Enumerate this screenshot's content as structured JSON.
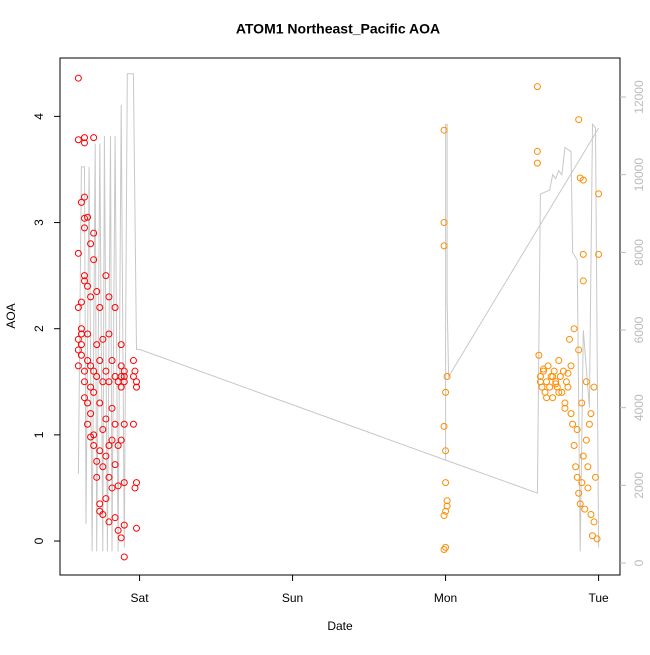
{
  "chart_data": {
    "type": "scatter",
    "title": "ATOM1 Northeast_Pacific AOA",
    "x_label": "Date",
    "y_label": "AOA",
    "xlim": [
      -0.52,
      3.14
    ],
    "xticks": [
      {
        "value": 0,
        "label": "Sat"
      },
      {
        "value": 1,
        "label": "Sun"
      },
      {
        "value": 2,
        "label": "Mon"
      },
      {
        "value": 3,
        "label": "Tue"
      }
    ],
    "ylim": [
      -0.32,
      4.55
    ],
    "yticks": [
      0,
      1,
      2,
      3,
      4
    ],
    "y2lim": [
      -309,
      13005
    ],
    "y2ticks": [
      0,
      2000,
      4000,
      6000,
      8000,
      10000,
      12000
    ],
    "series": [
      {
        "type": "scatter",
        "color": "#ff0000",
        "x": [
          -0.4,
          -0.4,
          -0.4,
          -0.4,
          -0.4,
          -0.4,
          -0.4,
          -0.38,
          -0.38,
          -0.38,
          -0.38,
          -0.38,
          -0.38,
          -0.36,
          -0.36,
          -0.36,
          -0.36,
          -0.36,
          -0.36,
          -0.36,
          -0.36,
          -0.36,
          -0.36,
          -0.34,
          -0.34,
          -0.34,
          -0.34,
          -0.34,
          -0.34,
          -0.32,
          -0.32,
          -0.32,
          -0.32,
          -0.32,
          -0.32,
          -0.3,
          -0.3,
          -0.3,
          -0.3,
          -0.3,
          -0.3,
          -0.3,
          -0.28,
          -0.28,
          -0.28,
          -0.28,
          -0.28,
          -0.26,
          -0.26,
          -0.26,
          -0.26,
          -0.26,
          -0.26,
          -0.24,
          -0.24,
          -0.24,
          -0.24,
          -0.24,
          -0.22,
          -0.22,
          -0.22,
          -0.22,
          -0.22,
          -0.2,
          -0.2,
          -0.2,
          -0.2,
          -0.2,
          -0.2,
          -0.18,
          -0.18,
          -0.18,
          -0.18,
          -0.16,
          -0.16,
          -0.16,
          -0.16,
          -0.16,
          -0.14,
          -0.14,
          -0.14,
          -0.14,
          -0.12,
          -0.12,
          -0.12,
          -0.12,
          -0.12,
          -0.12,
          -0.1,
          -0.1,
          -0.1,
          -0.1,
          -0.1,
          -0.1,
          -0.1,
          -0.04,
          -0.04,
          -0.04,
          -0.03,
          -0.03,
          -0.02,
          -0.02,
          -0.02,
          -0.02
        ],
        "values": [
          4.36,
          3.78,
          2.71,
          2.2,
          1.9,
          1.8,
          1.65,
          3.19,
          2.0,
          2.25,
          1.95,
          1.85,
          1.75,
          3.8,
          3.75,
          3.24,
          3.04,
          2.95,
          2.5,
          2.45,
          1.6,
          1.5,
          1.35,
          3.05,
          2.4,
          1.95,
          1.7,
          1.3,
          1.1,
          2.8,
          2.3,
          1.65,
          1.45,
          1.2,
          0.98,
          3.8,
          2.9,
          2.65,
          1.6,
          1.4,
          1.0,
          0.9,
          2.35,
          1.85,
          1.55,
          0.75,
          0.6,
          2.2,
          1.7,
          1.3,
          0.85,
          0.35,
          0.28,
          1.9,
          1.5,
          1.05,
          0.7,
          0.25,
          2.5,
          1.6,
          1.15,
          0.8,
          0.4,
          2.3,
          1.95,
          1.5,
          0.9,
          0.6,
          0.18,
          1.7,
          1.25,
          0.95,
          0.5,
          2.2,
          1.55,
          1.1,
          0.72,
          0.22,
          1.5,
          0.9,
          0.52,
          0.1,
          1.85,
          1.65,
          1.55,
          1.45,
          0.95,
          0.03,
          1.6,
          1.55,
          1.5,
          1.1,
          0.55,
          0.15,
          -0.15,
          1.7,
          1.55,
          1.1,
          1.6,
          0.5,
          1.5,
          1.45,
          0.12,
          0.55
        ]
      },
      {
        "type": "scatter",
        "color": "#ff8c00",
        "x": [
          1.99,
          1.99,
          1.99,
          2.01,
          2.0,
          1.99,
          2.0,
          2.0,
          2.01,
          2.01,
          2.0,
          1.99,
          2.0,
          1.99,
          2.6,
          2.6,
          2.6,
          2.61,
          2.62,
          2.63,
          2.64,
          2.65,
          2.66,
          2.67,
          2.68,
          2.69,
          2.7,
          2.71,
          2.72,
          2.73,
          2.74,
          2.75,
          2.76,
          2.77,
          2.78,
          2.79,
          2.8,
          2.81,
          2.82,
          2.83,
          2.84,
          2.85,
          2.86,
          2.87,
          2.88,
          2.89,
          2.9,
          2.91,
          2.92,
          2.93,
          2.94,
          2.95,
          2.96,
          2.97,
          2.87,
          2.88,
          2.9,
          3.0,
          3.0,
          2.9,
          2.62,
          2.66,
          2.7,
          2.74,
          2.78,
          2.82,
          2.86,
          2.89,
          2.92,
          2.95,
          2.98,
          2.99,
          2.84,
          2.87,
          2.9,
          2.93,
          2.97,
          2.64,
          2.72,
          2.8
        ],
        "values": [
          3.87,
          3.0,
          2.78,
          1.55,
          1.4,
          1.08,
          0.85,
          0.55,
          0.38,
          0.33,
          0.28,
          0.24,
          -0.06,
          -0.08,
          4.28,
          3.67,
          3.56,
          1.75,
          1.55,
          1.45,
          1.6,
          1.4,
          1.5,
          1.65,
          1.45,
          1.55,
          1.35,
          1.6,
          1.5,
          1.45,
          1.7,
          1.55,
          1.4,
          1.6,
          1.3,
          1.5,
          1.45,
          1.9,
          1.2,
          1.1,
          0.9,
          0.7,
          0.6,
          0.45,
          0.35,
          0.55,
          0.8,
          0.3,
          0.95,
          0.5,
          1.1,
          0.25,
          0.05,
          0.18,
          3.97,
          3.42,
          3.4,
          3.27,
          2.7,
          2.7,
          1.5,
          1.35,
          1.55,
          1.4,
          1.25,
          1.65,
          1.05,
          1.3,
          1.5,
          1.2,
          0.6,
          0.02,
          2.0,
          1.8,
          2.45,
          0.7,
          1.45,
          1.62,
          1.48,
          1.58
        ]
      },
      {
        "type": "line",
        "axis": "y2",
        "color": "#c8c8c8",
        "x": [
          -0.4,
          -0.38,
          -0.36,
          -0.35,
          -0.33,
          -0.31,
          -0.29,
          -0.28,
          -0.26,
          -0.24,
          -0.23,
          -0.21,
          -0.19,
          -0.18,
          -0.16,
          -0.14,
          -0.12,
          -0.1,
          -0.08,
          -0.04,
          -0.02,
          0.0,
          2.0,
          2.6,
          2.62,
          2.68,
          2.7,
          2.72,
          2.74,
          2.76,
          2.78,
          2.82,
          2.83,
          2.86,
          2.88,
          2.9,
          2.94,
          2.96,
          2.98,
          3.0,
          3.0,
          2.0,
          2.0,
          2.01,
          2.01,
          2.02,
          3.0
        ],
        "values": [
          2300,
          10200,
          10200,
          1000,
          10200,
          300,
          10800,
          300,
          10800,
          300,
          11000,
          300,
          11000,
          300,
          11000,
          300,
          11800,
          400,
          12600,
          12600,
          5500,
          5500,
          2650,
          1800,
          9500,
          9600,
          10000,
          9900,
          10100,
          10000,
          10700,
          10600,
          8000,
          7800,
          300,
          6000,
          4000,
          11300,
          11200,
          400,
          null,
          2650,
          11300,
          11300,
          6800,
          4800,
          11200
        ]
      }
    ]
  }
}
